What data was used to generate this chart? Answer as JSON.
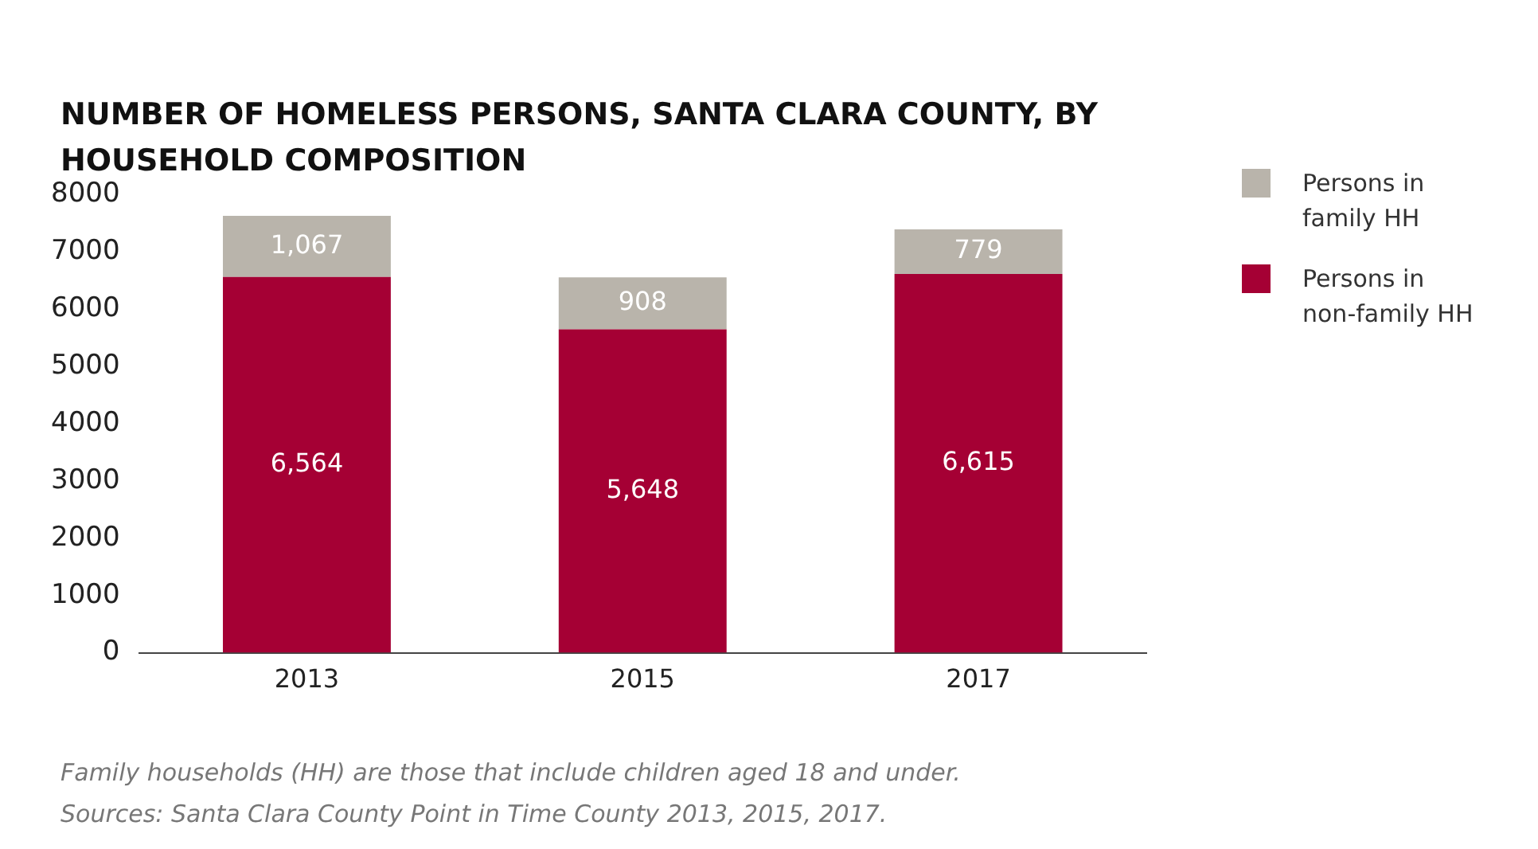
{
  "chart_data": {
    "type": "bar",
    "title": "NUMBER OF HOMELESS PERSONS, SANTA CLARA COUNTY, BY HOUSEHOLD COMPOSITION",
    "categories": [
      "2013",
      "2015",
      "2017"
    ],
    "series": [
      {
        "name": "Persons in non-family HH",
        "color": "#a50034",
        "values": [
          6564,
          5648,
          6615
        ],
        "value_labels": [
          "6,564",
          "5,648",
          "6,615"
        ]
      },
      {
        "name": "Persons in family HH",
        "color": "#b9b4ab",
        "values": [
          1067,
          908,
          779
        ],
        "value_labels": [
          "1,067",
          "908",
          "779"
        ]
      }
    ],
    "stacked": true,
    "grid": false,
    "legend": "top right",
    "ylim": [
      0,
      8000
    ],
    "yticks": [
      0,
      1000,
      2000,
      3000,
      4000,
      5000,
      6000,
      7000,
      8000
    ],
    "annotations": [
      "Family households (HH) are those that include children aged 18 and under.",
      "Sources: Santa Clara County Point in Time County 2013, 2015, 2017."
    ]
  }
}
